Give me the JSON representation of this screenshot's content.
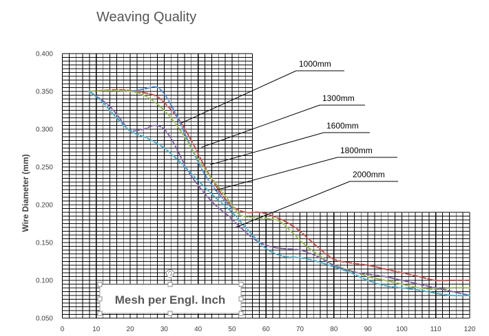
{
  "chart_data": {
    "type": "line",
    "title": "Weaving Quality",
    "xlabel": "Mesh per Engl. Inch",
    "ylabel": "Wire Diameter (mm)",
    "xlim": [
      0,
      120
    ],
    "ylim": [
      0.05,
      0.4
    ],
    "x_ticks": [
      "0",
      "10",
      "20",
      "30",
      "40",
      "50",
      "60",
      "70",
      "80",
      "90",
      "100",
      "110",
      "120"
    ],
    "y_ticks": [
      "0.050",
      "0.100",
      "0.150",
      "0.200",
      "0.250",
      "0.300",
      "0.350",
      "0.400"
    ],
    "grid": true,
    "series": [
      {
        "name": "1000mm",
        "color": "#c0504d",
        "x": [
          8,
          15,
          20,
          27,
          30,
          34,
          38,
          42,
          46,
          50,
          54,
          58,
          62,
          66,
          70,
          75,
          80,
          85,
          90,
          95,
          100,
          105,
          110,
          115,
          120
        ],
        "y": [
          0.35,
          0.352,
          0.351,
          0.345,
          0.335,
          0.315,
          0.285,
          0.25,
          0.22,
          0.198,
          0.19,
          0.19,
          0.185,
          0.177,
          0.165,
          0.145,
          0.128,
          0.123,
          0.12,
          0.115,
          0.11,
          0.105,
          0.1,
          0.1,
          0.1
        ]
      },
      {
        "name": "1300mm",
        "color": "#558ed5",
        "x": [
          20,
          24,
          27,
          29,
          31,
          34,
          38,
          42,
          46,
          50
        ],
        "y": [
          0.35,
          0.353,
          0.356,
          0.352,
          0.34,
          0.315,
          0.275,
          0.24,
          0.215,
          0.195
        ]
      },
      {
        "name": "1600mm",
        "color": "#9bbb59",
        "x": [
          8,
          14,
          20,
          24,
          28,
          32,
          36,
          40,
          44,
          48,
          52,
          56,
          60,
          64,
          68,
          72,
          76,
          80,
          85,
          90,
          95,
          100,
          105,
          110,
          115,
          120
        ],
        "y": [
          0.35,
          0.351,
          0.35,
          0.345,
          0.333,
          0.315,
          0.29,
          0.26,
          0.235,
          0.212,
          0.188,
          0.183,
          0.182,
          0.178,
          0.162,
          0.145,
          0.132,
          0.12,
          0.113,
          0.105,
          0.1,
          0.095,
          0.09,
          0.088,
          0.09,
          0.09
        ]
      },
      {
        "name": "1800mm",
        "color": "#8064a2",
        "x": [
          8,
          14,
          18,
          20,
          24,
          27,
          30,
          33,
          37,
          41,
          45,
          49,
          53,
          57,
          61,
          65,
          70,
          75,
          80,
          85,
          90,
          95,
          100,
          105,
          110,
          115,
          120
        ],
        "y": [
          0.35,
          0.33,
          0.308,
          0.298,
          0.3,
          0.305,
          0.3,
          0.28,
          0.245,
          0.22,
          0.2,
          0.185,
          0.168,
          0.153,
          0.145,
          0.142,
          0.14,
          0.132,
          0.12,
          0.112,
          0.108,
          0.105,
          0.1,
          0.095,
          0.09,
          0.085,
          0.08
        ]
      },
      {
        "name": "2000mm",
        "color": "#4bacc6",
        "x": [
          8,
          12,
          16,
          20,
          25,
          30,
          35,
          40,
          45,
          50,
          55,
          60,
          65,
          70,
          75,
          80,
          85,
          90,
          95,
          100,
          105,
          110,
          115,
          120
        ],
        "y": [
          0.35,
          0.335,
          0.315,
          0.298,
          0.288,
          0.275,
          0.255,
          0.232,
          0.21,
          0.19,
          0.165,
          0.142,
          0.132,
          0.13,
          0.125,
          0.118,
          0.11,
          0.1,
          0.093,
          0.09,
          0.087,
          0.083,
          0.08,
          0.08
        ]
      }
    ],
    "callouts": [
      {
        "label": "1000mm",
        "x": 35,
        "y": 0.308
      },
      {
        "label": "1300mm",
        "x": 41,
        "y": 0.276
      },
      {
        "label": "1600mm",
        "x": 43.5,
        "y": 0.253
      },
      {
        "label": "1800mm",
        "x": 45,
        "y": 0.219
      },
      {
        "label": "2000mm",
        "x": 51,
        "y": 0.17
      }
    ]
  }
}
